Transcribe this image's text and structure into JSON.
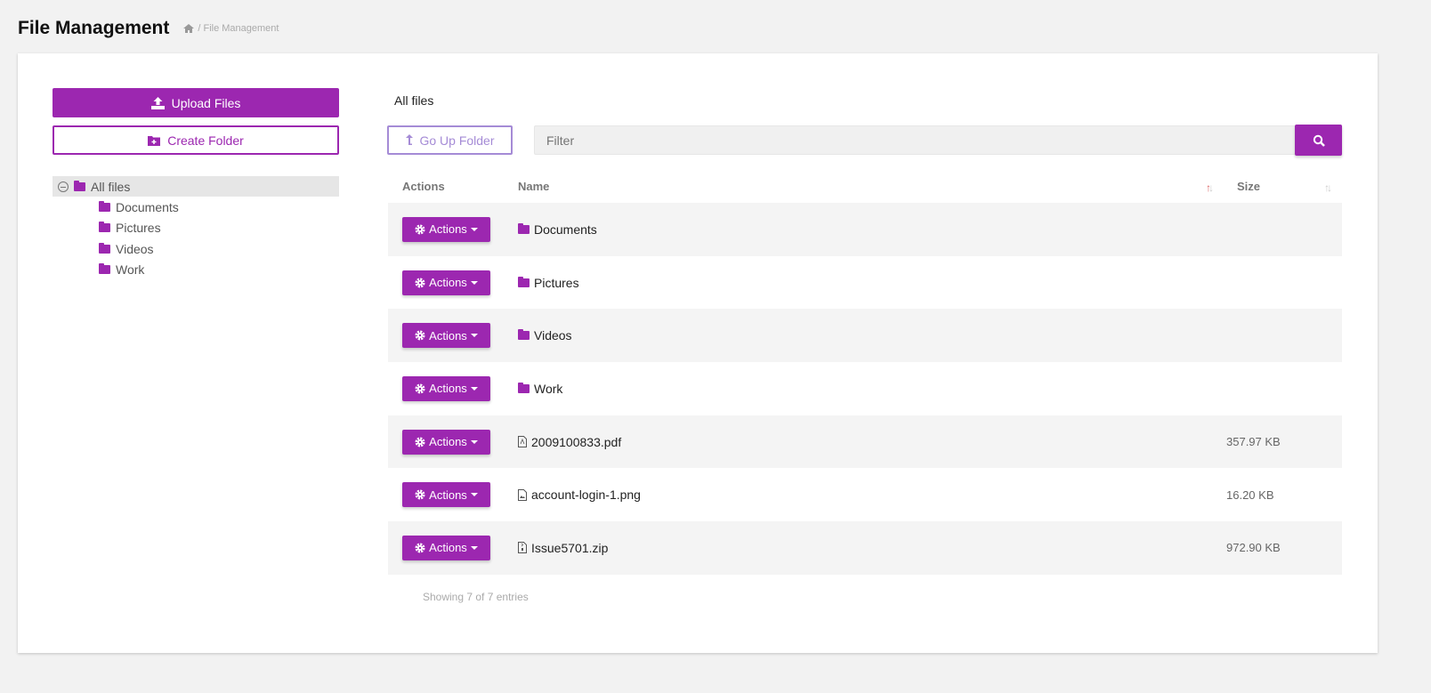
{
  "header": {
    "title": "File Management",
    "breadcrumb": "/ File Management"
  },
  "sidebar": {
    "upload_label": "Upload Files",
    "create_label": "Create Folder",
    "tree": {
      "root": "All files",
      "children": [
        "Documents",
        "Pictures",
        "Videos",
        "Work"
      ]
    }
  },
  "main": {
    "current_folder": "All files",
    "go_up_label": "Go Up Folder",
    "filter_placeholder": "Filter",
    "columns": {
      "actions": "Actions",
      "name": "Name",
      "size": "Size"
    },
    "action_label": "Actions",
    "rows": [
      {
        "type": "folder",
        "name": "Documents",
        "size": ""
      },
      {
        "type": "folder",
        "name": "Pictures",
        "size": ""
      },
      {
        "type": "folder",
        "name": "Videos",
        "size": ""
      },
      {
        "type": "folder",
        "name": "Work",
        "size": ""
      },
      {
        "type": "pdf",
        "name": "2009100833.pdf",
        "size": "357.97 KB"
      },
      {
        "type": "image",
        "name": "account-login-1.png",
        "size": "16.20 KB"
      },
      {
        "type": "zip",
        "name": "Issue5701.zip",
        "size": "972.90 KB"
      }
    ],
    "footer": "Showing 7 of 7 entries"
  },
  "colors": {
    "accent": "#9c27b0",
    "secondary": "#a58bd6"
  }
}
